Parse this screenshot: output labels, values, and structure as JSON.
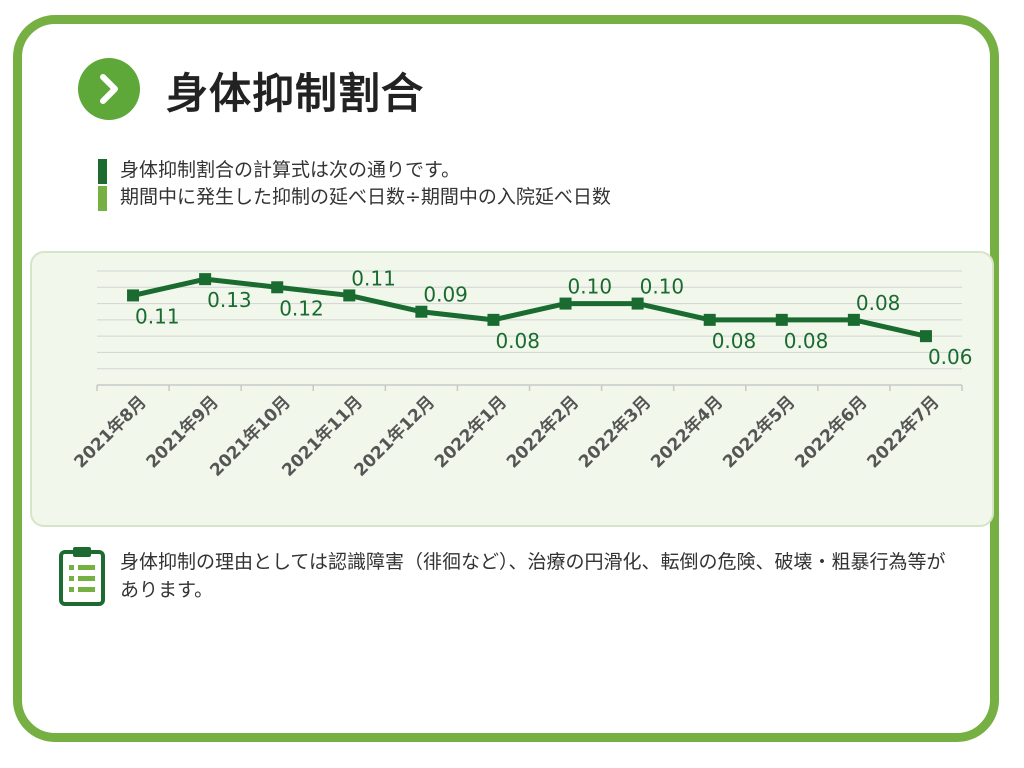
{
  "title": "身体抑制割合",
  "formula": {
    "line1": "身体抑制割合の計算式は次の通りです。",
    "line2": "期間中に発生した抑制の延べ日数÷期間中の入院延べ日数"
  },
  "note": {
    "text": "身体抑制の理由としては認識障害（徘徊など）、治療の円滑化、転倒の危険、破壊・粗暴行為等があります。"
  },
  "colors": {
    "frame": "#76b043",
    "accent_dark": "#1e6b32",
    "accent_light": "#76b043",
    "line": "#1a6b30"
  },
  "icons": {
    "badge": "chevron-right-icon",
    "note": "clipboard-checklist-icon"
  },
  "chart_data": {
    "type": "line",
    "categories": [
      "2021年8月",
      "2021年9月",
      "2021年10月",
      "2021年11月",
      "2021年12月",
      "2022年1月",
      "2022年2月",
      "2022年3月",
      "2022年4月",
      "2022年5月",
      "2022年6月",
      "2022年7月"
    ],
    "series": [
      {
        "values": [
          0.11,
          0.13,
          0.12,
          0.11,
          0.09,
          0.08,
          0.1,
          0.1,
          0.08,
          0.08,
          0.08,
          0.06
        ]
      }
    ],
    "data_labels": [
      "0.11",
      "0.13",
      "0.12",
      "0.11",
      "0.09",
      "0.08",
      "0.10",
      "0.10",
      "0.08",
      "0.08",
      "0.08",
      "0.06"
    ],
    "ylim": [
      0,
      0.14
    ],
    "grid": true,
    "legend": "none"
  }
}
